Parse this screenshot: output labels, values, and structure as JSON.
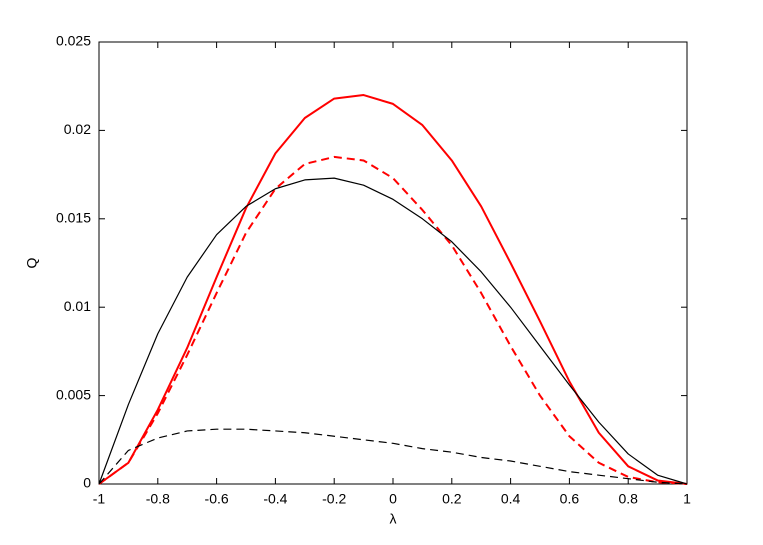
{
  "chart_data": {
    "type": "line",
    "xlabel": "λ",
    "ylabel": "Q",
    "x": [
      -1,
      -0.9,
      -0.8,
      -0.7,
      -0.6,
      -0.5,
      -0.4,
      -0.3,
      -0.2,
      -0.1,
      0,
      0.1,
      0.2,
      0.3,
      0.4,
      0.5,
      0.6,
      0.7,
      0.8,
      0.9,
      1
    ],
    "series": [
      {
        "color": "#ff0000",
        "linestyle": "solid",
        "values": [
          0,
          0.0012,
          0.0042,
          0.0077,
          0.0117,
          0.0156,
          0.0187,
          0.0207,
          0.0218,
          0.022,
          0.0215,
          0.0203,
          0.0183,
          0.0157,
          0.0125,
          0.0092,
          0.0058,
          0.0029,
          0.001,
          0.0002,
          0
        ]
      },
      {
        "color": "#ff0000",
        "linestyle": "dashed",
        "values": [
          0,
          0.0012,
          0.004,
          0.0073,
          0.0108,
          0.0142,
          0.0167,
          0.0181,
          0.0185,
          0.0183,
          0.0173,
          0.0155,
          0.0135,
          0.0108,
          0.0078,
          0.005,
          0.0027,
          0.0012,
          0.0004,
          0.0001,
          0
        ]
      },
      {
        "color": "#000000",
        "linestyle": "solid",
        "values": [
          0,
          0.0045,
          0.0085,
          0.0117,
          0.0141,
          0.0157,
          0.0167,
          0.0172,
          0.0173,
          0.0169,
          0.0161,
          0.015,
          0.0137,
          0.012,
          0.01,
          0.0078,
          0.0056,
          0.0035,
          0.0017,
          0.0005,
          0
        ]
      },
      {
        "color": "#000000",
        "linestyle": "dashed",
        "values": [
          0,
          0.0019,
          0.0026,
          0.003,
          0.0031,
          0.0031,
          0.003,
          0.0029,
          0.0027,
          0.0025,
          0.0023,
          0.002,
          0.0018,
          0.0015,
          0.0013,
          0.001,
          0.0007,
          0.0005,
          0.0003,
          0.0001,
          0
        ]
      }
    ],
    "xlim": [
      -1,
      1
    ],
    "xticks": [
      -1,
      -0.8,
      -0.6,
      -0.4,
      -0.2,
      0,
      0.2,
      0.4,
      0.6,
      0.8,
      1
    ],
    "ylim": [
      0,
      0.025
    ],
    "yticks": [
      0,
      0.005,
      0.01,
      0.015,
      0.02,
      0.025
    ],
    "grid": false
  }
}
